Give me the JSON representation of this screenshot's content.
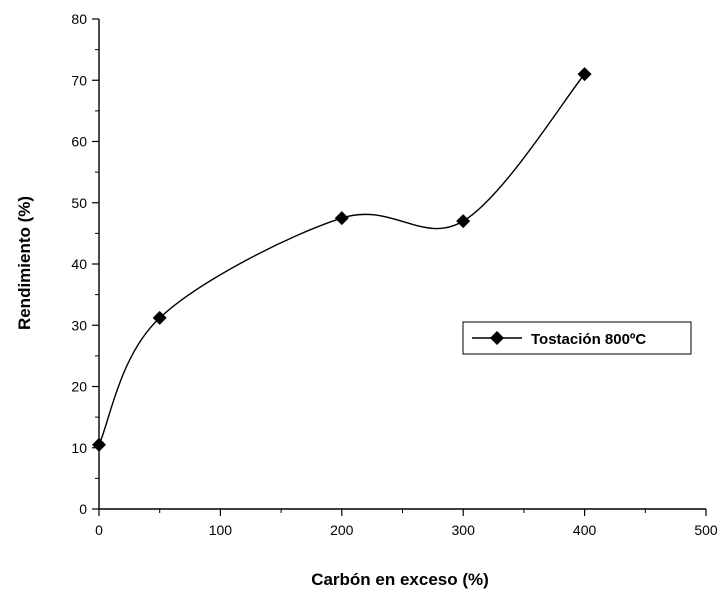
{
  "chart_data": {
    "type": "line",
    "xlabel": "Carbón en exceso  (%)",
    "ylabel": "Rendimiento  (%)",
    "xlim": [
      0,
      500
    ],
    "ylim": [
      0,
      80
    ],
    "xticks": [
      0,
      100,
      200,
      300,
      400,
      500
    ],
    "yticks": [
      0,
      10,
      20,
      30,
      40,
      50,
      60,
      70,
      80
    ],
    "xtick_labels": [
      "0",
      "100",
      "200",
      "300",
      "400",
      "500"
    ],
    "ytick_labels": [
      "0",
      "10",
      "20",
      "30",
      "40",
      "50",
      "60",
      "70",
      "80"
    ],
    "grid": false,
    "legend_position": "right",
    "series": [
      {
        "name": "Tostación 800ºC",
        "marker": "diamond",
        "color": "#000000",
        "smooth": true,
        "x": [
          0,
          50,
          200,
          300,
          400
        ],
        "y": [
          10.5,
          31.2,
          47.5,
          47.0,
          71.0
        ]
      }
    ]
  }
}
